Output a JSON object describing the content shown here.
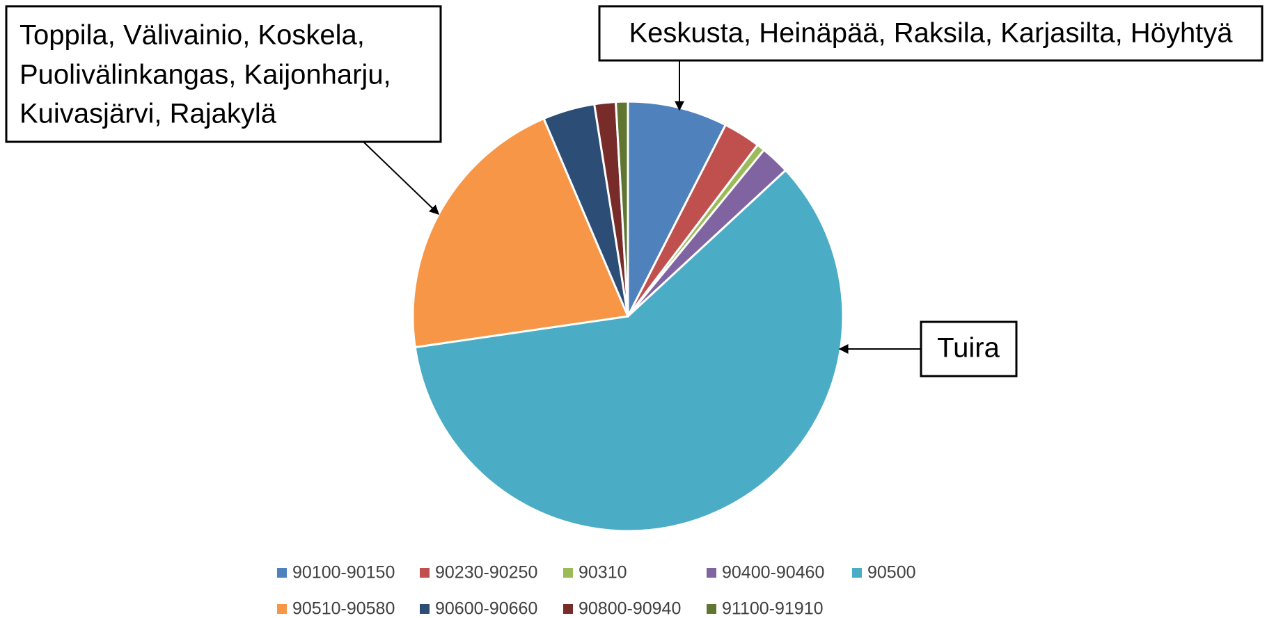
{
  "chart_data": {
    "type": "pie",
    "categories": [
      "90100-90150",
      "90230-90250",
      "90310",
      "90400-90460",
      "90500",
      "90510-90580",
      "90600-90660",
      "90800-90940",
      "91100-91910"
    ],
    "values": [
      7.5,
      2.8,
      0.6,
      2.2,
      59.6,
      20.9,
      3.9,
      1.6,
      0.9
    ],
    "colors": [
      "#4f81bd",
      "#c0504d",
      "#9bbb59",
      "#8064a2",
      "#4bacc6",
      "#f79646",
      "#2c4d75",
      "#772c2a",
      "#5f7530"
    ],
    "legend": "bottom",
    "annotations": [
      {
        "lines": [
          "Toppila, Välivainio, Koskela,",
          "Puolivälinkangas, Kaijonharju,",
          "Kuivasjärvi, Rajakylä"
        ]
      },
      {
        "lines": [
          "Keskusta, Heinäpää, Raksila, Karjasilta, Höyhtyä"
        ]
      },
      {
        "lines": [
          "Tuira"
        ]
      }
    ]
  }
}
